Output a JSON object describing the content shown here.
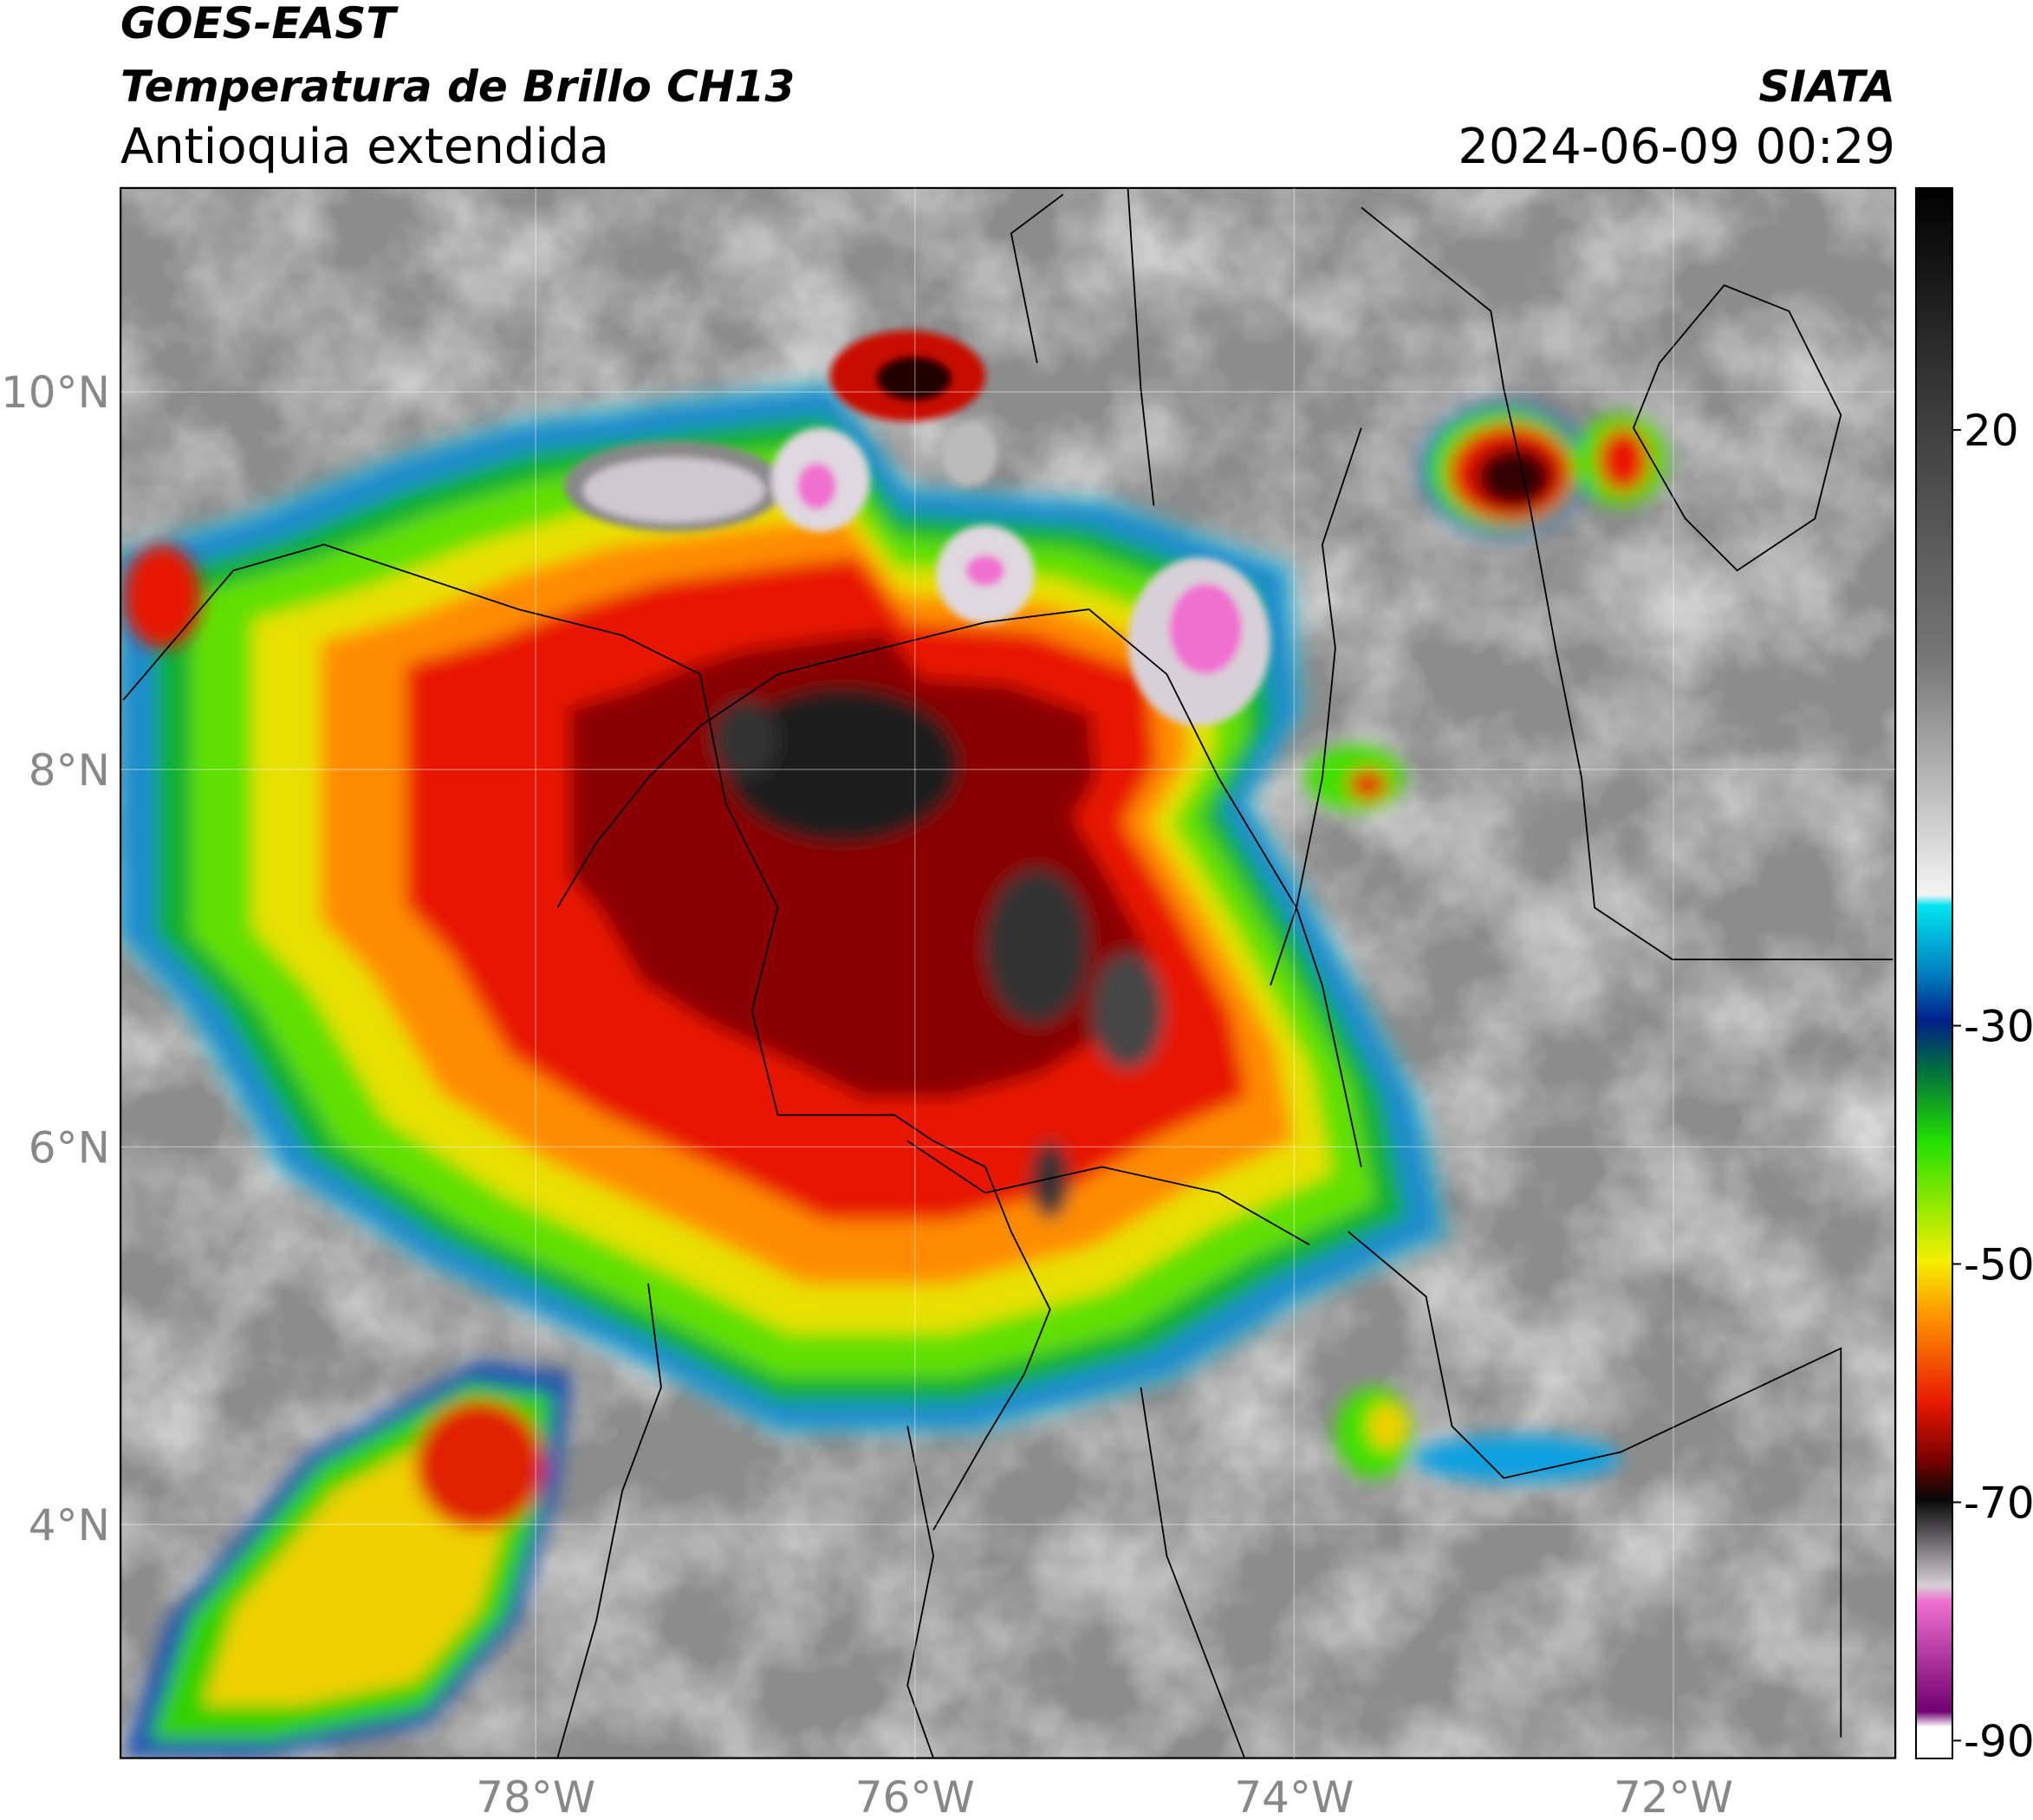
{
  "header": {
    "title_lines": [
      "GOES-EAST",
      "Temperatura de Brillo CH13"
    ],
    "subtitle": "Antioquia extendida",
    "source": "SIATA",
    "datetime": "2024-06-09 00:29"
  },
  "map": {
    "lonlim": [
      -80.19,
      -70.83
    ],
    "latlim": [
      2.76,
      11.08
    ],
    "lon_ticks": [
      {
        "value": -78,
        "label": "78°W"
      },
      {
        "value": -76,
        "label": "76°W"
      },
      {
        "value": -74,
        "label": "74°W"
      },
      {
        "value": -72,
        "label": "72°W"
      }
    ],
    "lat_ticks": [
      {
        "value": 10,
        "label": "10°N"
      },
      {
        "value": 8,
        "label": "8°N"
      },
      {
        "value": 6,
        "label": "6°N"
      },
      {
        "value": 4,
        "label": "4°N"
      }
    ]
  },
  "colorbar": {
    "lim": [
      -91.5,
      40.3
    ],
    "ticks": [
      20,
      -30,
      -50,
      -70,
      -90
    ]
  }
}
